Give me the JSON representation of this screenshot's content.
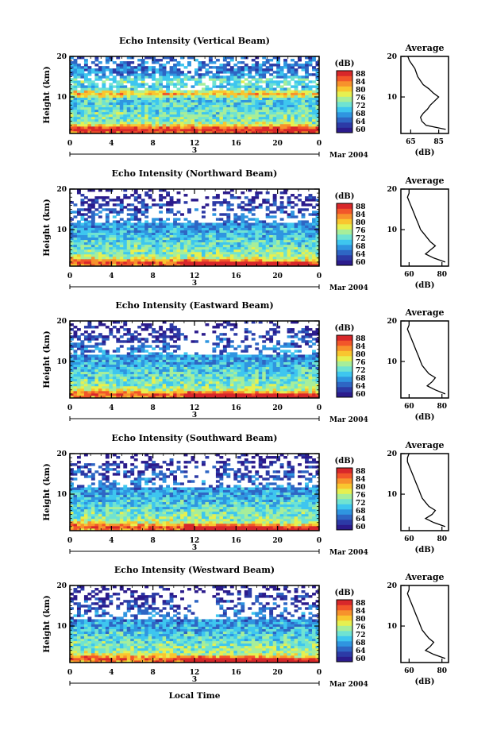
{
  "figure": {
    "footer_xlabel": "Local Time",
    "date_label": "Mar 2004",
    "day_label": "3"
  },
  "colorbar": {
    "unit": "(dB)",
    "ticks": [
      "88",
      "84",
      "80",
      "76",
      "72",
      "68",
      "64",
      "60"
    ],
    "colors": [
      "#2b1b8c",
      "#2c3aa6",
      "#2e66c4",
      "#2f95e0",
      "#3ec6ef",
      "#6fe3d2",
      "#a7ee9a",
      "#e6f050",
      "#f9c62f",
      "#f7922c",
      "#f2562a",
      "#d8272a"
    ]
  },
  "chart_data": [
    {
      "type": "heatmap",
      "title": "Echo Intensity (Vertical Beam)",
      "ylabel": "Height (km)",
      "x_ticks": [
        "0",
        "4",
        "8",
        "12",
        "16",
        "20",
        "0"
      ],
      "y_ticks": [
        "10",
        "20"
      ],
      "xlim": [
        0,
        24
      ],
      "ylim": [
        1,
        20
      ],
      "zlim": [
        60,
        88
      ],
      "zunit": "dB",
      "profile": {
        "title": "Average",
        "xlabel": "(dB)",
        "x_ticks": [
          "65",
          "85"
        ],
        "xlim": [
          58,
          92
        ],
        "heights": [
          2,
          3,
          4,
          5,
          6,
          7,
          8,
          9,
          10,
          11,
          12,
          13,
          14,
          15,
          16,
          17,
          18,
          19,
          20
        ],
        "values": [
          90,
          76,
          73,
          72,
          74,
          77,
          79,
          82,
          85,
          81,
          78,
          74,
          72,
          70,
          69,
          68,
          66,
          64,
          63
        ]
      }
    },
    {
      "type": "heatmap",
      "title": "Echo Intensity (Northward Beam)",
      "ylabel": "Height (km)",
      "x_ticks": [
        "0",
        "4",
        "8",
        "12",
        "16",
        "20",
        "0"
      ],
      "y_ticks": [
        "10",
        "20"
      ],
      "xlim": [
        0,
        24
      ],
      "ylim": [
        1,
        20
      ],
      "zlim": [
        60,
        88
      ],
      "zunit": "dB",
      "profile": {
        "title": "Average",
        "xlabel": "(dB)",
        "x_ticks": [
          "60",
          "80"
        ],
        "xlim": [
          55,
          84
        ],
        "heights": [
          2,
          3,
          4,
          5,
          6,
          7,
          8,
          9,
          10,
          11,
          12,
          13,
          14,
          15,
          16,
          17,
          18,
          19,
          20
        ],
        "values": [
          82,
          75,
          70,
          73,
          76,
          73,
          71,
          69,
          67,
          66,
          65,
          64,
          63,
          62,
          61,
          60,
          59,
          60,
          60
        ]
      }
    },
    {
      "type": "heatmap",
      "title": "Echo Intensity (Eastward Beam)",
      "ylabel": "Height (km)",
      "x_ticks": [
        "0",
        "4",
        "8",
        "12",
        "16",
        "20",
        "0"
      ],
      "y_ticks": [
        "10",
        "20"
      ],
      "xlim": [
        0,
        24
      ],
      "ylim": [
        1,
        20
      ],
      "zlim": [
        60,
        88
      ],
      "zunit": "dB",
      "profile": {
        "title": "Average",
        "xlabel": "(dB)",
        "x_ticks": [
          "60",
          "80"
        ],
        "xlim": [
          55,
          84
        ],
        "heights": [
          2,
          3,
          4,
          5,
          6,
          7,
          8,
          9,
          10,
          11,
          12,
          13,
          14,
          15,
          16,
          17,
          18,
          19,
          20
        ],
        "values": [
          82,
          76,
          71,
          74,
          76,
          72,
          70,
          68,
          67,
          66,
          65,
          64,
          63,
          62,
          61,
          60,
          59,
          60,
          60
        ]
      }
    },
    {
      "type": "heatmap",
      "title": "Echo Intensity (Southward Beam)",
      "ylabel": "Height (km)",
      "x_ticks": [
        "0",
        "4",
        "8",
        "12",
        "16",
        "20",
        "0"
      ],
      "y_ticks": [
        "10",
        "20"
      ],
      "xlim": [
        0,
        24
      ],
      "ylim": [
        1,
        20
      ],
      "zlim": [
        60,
        88
      ],
      "zunit": "dB",
      "profile": {
        "title": "Average",
        "xlabel": "(dB)",
        "x_ticks": [
          "60",
          "80"
        ],
        "xlim": [
          55,
          84
        ],
        "heights": [
          2,
          3,
          4,
          5,
          6,
          7,
          8,
          9,
          10,
          11,
          12,
          13,
          14,
          15,
          16,
          17,
          18,
          19,
          20
        ],
        "values": [
          82,
          75,
          70,
          74,
          76,
          72,
          70,
          68,
          67,
          66,
          65,
          64,
          63,
          62,
          61,
          60,
          59,
          59,
          60
        ]
      }
    },
    {
      "type": "heatmap",
      "title": "Echo Intensity (Westward Beam)",
      "ylabel": "Height (km)",
      "x_ticks": [
        "0",
        "4",
        "8",
        "12",
        "16",
        "20",
        "0"
      ],
      "y_ticks": [
        "10",
        "20"
      ],
      "xlim": [
        0,
        24
      ],
      "ylim": [
        1,
        20
      ],
      "zlim": [
        60,
        88
      ],
      "zunit": "dB",
      "profile": {
        "title": "Average",
        "xlabel": "(dB)",
        "x_ticks": [
          "60",
          "80"
        ],
        "xlim": [
          55,
          84
        ],
        "heights": [
          2,
          3,
          4,
          5,
          6,
          7,
          8,
          9,
          10,
          11,
          12,
          13,
          14,
          15,
          16,
          17,
          18,
          19,
          20
        ],
        "values": [
          82,
          75,
          70,
          73,
          75,
          72,
          70,
          68,
          67,
          66,
          65,
          64,
          63,
          62,
          61,
          60,
          59,
          60,
          60
        ]
      }
    }
  ]
}
